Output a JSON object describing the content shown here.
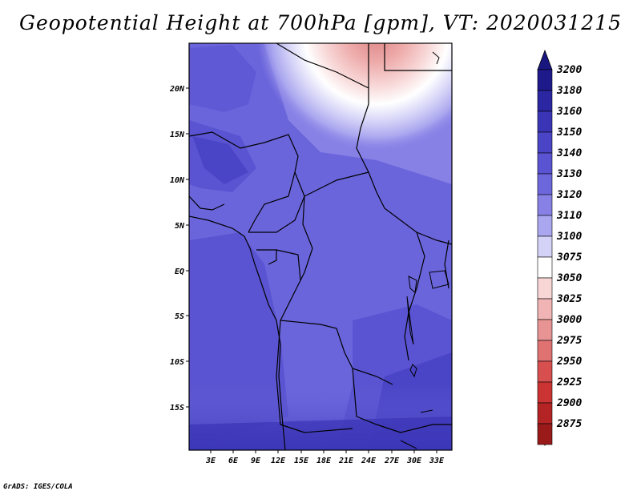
{
  "title": "Geopotential Height at 700hPa [gpm], VT: 2020031215",
  "credit": "GrADS: IGES/COLA",
  "map": {
    "variable": "Geopotential Height",
    "level": "700hPa",
    "units": "gpm",
    "valid_time": "2020031215",
    "lat_ticks": [
      "20N",
      "15N",
      "10N",
      "5N",
      "EQ",
      "5S",
      "10S",
      "15S"
    ],
    "lon_ticks": [
      "3E",
      "6E",
      "9E",
      "12E",
      "15E",
      "18E",
      "21E",
      "24E",
      "27E",
      "30E",
      "33E"
    ]
  },
  "colorbar": {
    "levels": [
      {
        "label": "3200",
        "color": "#1e1a8c"
      },
      {
        "label": "3180",
        "color": "#2b27a3"
      },
      {
        "label": "3160",
        "color": "#3a35b6"
      },
      {
        "label": "3150",
        "color": "#4a45c6"
      },
      {
        "label": "3140",
        "color": "#5a54d2"
      },
      {
        "label": "3130",
        "color": "#6d67dc"
      },
      {
        "label": "3120",
        "color": "#8781e6"
      },
      {
        "label": "3110",
        "color": "#aaa6ef"
      },
      {
        "label": "3100",
        "color": "#d4d2f7"
      },
      {
        "label": "3075",
        "color": "#ffffff"
      },
      {
        "label": "3050",
        "color": "#f9d6d6"
      },
      {
        "label": "3025",
        "color": "#f1b4b4"
      },
      {
        "label": "3000",
        "color": "#e89494"
      },
      {
        "label": "2975",
        "color": "#e07272"
      },
      {
        "label": "2950",
        "color": "#d84f4f"
      },
      {
        "label": "2925",
        "color": "#cc3434"
      },
      {
        "label": "2900",
        "color": "#b52424"
      },
      {
        "label": "2875",
        "color": "#9a1a1a"
      }
    ],
    "top_triangle_color": "#1a1680",
    "bottom_triangle_color": "#8f1515"
  }
}
